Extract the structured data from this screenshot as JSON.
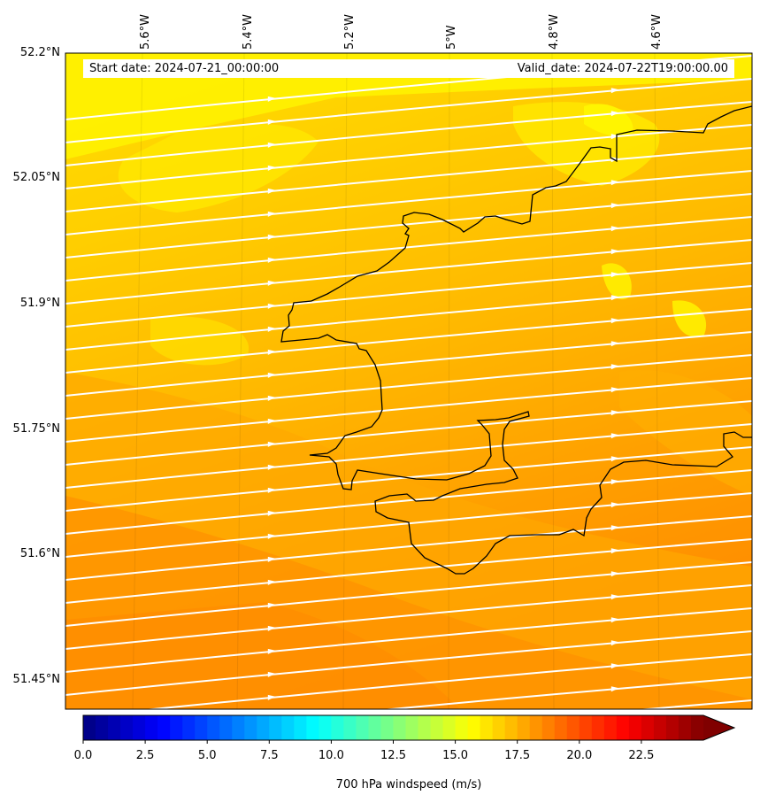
{
  "title": {
    "start": "Start date: 2024-07-21_00:00:00",
    "valid": "Valid_date: 2024-07-22T19:00:00.00"
  },
  "lat_labels": [
    "52.2°N",
    "52.05°N",
    "51.9°N",
    "51.75°N",
    "51.6°N",
    "51.45°N"
  ],
  "lon_labels": [
    "5.6°W",
    "5.4°W",
    "5.2°W",
    "5°W",
    "4.8°W",
    "4.6°W"
  ],
  "colorbar": {
    "label": "700 hPa windspeed (m/s)",
    "ticks": [
      "0.0",
      "2.5",
      "5.0",
      "7.5",
      "10.0",
      "12.5",
      "15.0",
      "17.5",
      "20.0",
      "22.5"
    ],
    "min": 0,
    "max": 25,
    "extend": "max",
    "colormap": "jet"
  },
  "map": {
    "field": "700 hPa windspeed",
    "units": "m/s",
    "streamline_color": "#ffffff",
    "coastline_color": "#000000",
    "field_colors": {
      "yellow": "#ffe600",
      "amber": "#ffc400",
      "orange": "#ff9f00",
      "dark_orange": "#ff8c00"
    }
  }
}
